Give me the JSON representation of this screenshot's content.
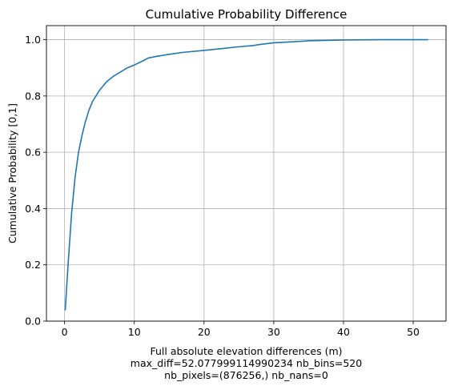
{
  "chart_data": {
    "type": "line",
    "title": "Cumulative Probability Difference",
    "xlabel": "Full absolute elevation differences (m)",
    "xlabel_extra": [
      "max_diff=52.077999114990234 nb_bins=520",
      "nb_pixels=(876256,) nb_nans=0"
    ],
    "ylabel": "Cumulative Probability [0,1]",
    "xlim": [
      -2.6,
      54.7
    ],
    "ylim": [
      0,
      1.05
    ],
    "xticks": [
      0,
      10,
      20,
      30,
      40,
      50
    ],
    "xtick_labels": [
      "0",
      "10",
      "20",
      "30",
      "40",
      "50"
    ],
    "yticks": [
      0,
      0.2,
      0.4,
      0.6,
      0.8,
      1.0
    ],
    "ytick_labels": [
      "0.0",
      "0.2",
      "0.4",
      "0.6",
      "0.8",
      "1.0"
    ],
    "grid": true,
    "line_color": "#1f77b4",
    "series": [
      {
        "x": [
          0.1,
          0.5,
          1.0,
          1.5,
          2.0,
          2.5,
          3.0,
          3.5,
          4.0,
          5.0,
          6.0,
          7.0,
          8.0,
          9.0,
          10.0,
          11.0,
          12.0,
          13.0,
          15.0,
          17.0,
          20.0,
          22.0,
          25.0,
          27.0,
          28.0,
          30.0,
          33.0,
          35.0,
          38.0,
          40.0,
          45.0,
          50.0,
          52.08
        ],
        "y": [
          0.04,
          0.2,
          0.38,
          0.51,
          0.6,
          0.66,
          0.71,
          0.75,
          0.78,
          0.82,
          0.85,
          0.87,
          0.885,
          0.9,
          0.91,
          0.922,
          0.935,
          0.94,
          0.948,
          0.955,
          0.962,
          0.967,
          0.975,
          0.979,
          0.983,
          0.989,
          0.993,
          0.996,
          0.998,
          0.999,
          1.0,
          1.0,
          1.0
        ]
      }
    ]
  }
}
